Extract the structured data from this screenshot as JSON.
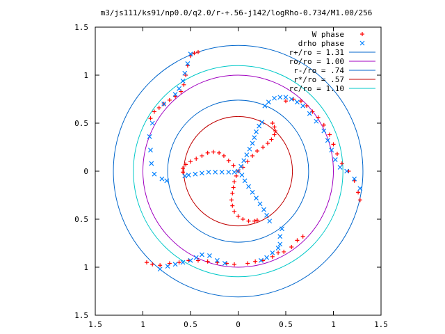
{
  "chart_data": {
    "type": "scatter",
    "title": "m3/js111/ks91/np0.0/q2.0/r-+.56-j142/logRho-0.734/M1.00/256",
    "xlabel": "",
    "ylabel": "",
    "xlim": [
      -1.5,
      1.5
    ],
    "ylim": [
      -1.5,
      1.5
    ],
    "grid": false,
    "legend_position": "top-right",
    "x_ticks": [
      {
        "v": -1.5,
        "label": "1.5"
      },
      {
        "v": -1.0,
        "label": "1"
      },
      {
        "v": -0.5,
        "label": "0.5"
      },
      {
        "v": 0,
        "label": "0"
      },
      {
        "v": 0.5,
        "label": "0.5"
      },
      {
        "v": 1.0,
        "label": "1"
      },
      {
        "v": 1.5,
        "label": "1.5"
      }
    ],
    "y_ticks": [
      {
        "v": 1.5,
        "label": "1.5"
      },
      {
        "v": 1.0,
        "label": "1"
      },
      {
        "v": 0.5,
        "label": "0.5"
      },
      {
        "v": 0,
        "label": "0"
      },
      {
        "v": -0.5,
        "label": "0.5"
      },
      {
        "v": -1.0,
        "label": "1"
      },
      {
        "v": -1.5,
        "label": "1.5"
      }
    ],
    "series": [
      {
        "name": "W phase",
        "marker": "plus",
        "color": "#ff0000",
        "points": [
          [
            0.0,
            0.0
          ],
          [
            -0.05,
            0.06
          ],
          [
            -0.1,
            0.11
          ],
          [
            -0.15,
            0.16
          ],
          [
            -0.2,
            0.19
          ],
          [
            -0.26,
            0.2
          ],
          [
            -0.32,
            0.19
          ],
          [
            -0.38,
            0.16
          ],
          [
            -0.44,
            0.13
          ],
          [
            -0.5,
            0.1
          ],
          [
            -0.55,
            0.07
          ],
          [
            -0.58,
            0.03
          ],
          [
            -0.58,
            -0.01
          ],
          [
            0.05,
            0.04
          ],
          [
            0.1,
            0.1
          ],
          [
            0.15,
            0.16
          ],
          [
            0.2,
            0.21
          ],
          [
            0.26,
            0.25
          ],
          [
            0.31,
            0.29
          ],
          [
            0.35,
            0.33
          ],
          [
            0.38,
            0.38
          ],
          [
            0.39,
            0.42
          ],
          [
            0.38,
            0.46
          ],
          [
            0.36,
            0.5
          ],
          [
            -0.02,
            -0.05
          ],
          [
            -0.04,
            -0.11
          ],
          [
            -0.05,
            -0.17
          ],
          [
            -0.06,
            -0.23
          ],
          [
            -0.07,
            -0.3
          ],
          [
            -0.06,
            -0.36
          ],
          [
            -0.04,
            -0.42
          ],
          [
            0.0,
            -0.47
          ],
          [
            0.05,
            -0.5
          ],
          [
            0.11,
            -0.52
          ],
          [
            0.17,
            -0.52
          ],
          [
            0.2,
            -0.51
          ],
          [
            -0.5,
            1.2
          ],
          [
            -0.46,
            1.23
          ],
          [
            -0.42,
            1.24
          ],
          [
            -0.53,
            1.1
          ],
          [
            -0.55,
            1.0
          ],
          [
            -0.57,
            0.9
          ],
          [
            -0.6,
            0.83
          ],
          [
            -0.66,
            0.78
          ],
          [
            -0.72,
            0.74
          ],
          [
            -0.78,
            0.7
          ],
          [
            -0.83,
            0.66
          ],
          [
            -0.88,
            0.62
          ],
          [
            -0.92,
            0.55
          ],
          [
            0.5,
            0.73
          ],
          [
            0.58,
            0.75
          ],
          [
            0.66,
            0.73
          ],
          [
            0.72,
            0.68
          ],
          [
            0.78,
            0.62
          ],
          [
            0.84,
            0.56
          ],
          [
            0.9,
            0.48
          ],
          [
            0.96,
            0.38
          ],
          [
            1.0,
            0.28
          ],
          [
            1.04,
            0.18
          ],
          [
            1.09,
            0.08
          ],
          [
            1.16,
            0.0
          ],
          [
            1.22,
            -0.1
          ],
          [
            1.26,
            -0.22
          ],
          [
            1.28,
            -0.3
          ],
          [
            -0.96,
            -0.95
          ],
          [
            -0.9,
            -0.97
          ],
          [
            -0.82,
            -0.98
          ],
          [
            -0.72,
            -0.96
          ],
          [
            -0.62,
            -0.95
          ],
          [
            -0.52,
            -0.93
          ],
          [
            -0.42,
            -0.93
          ],
          [
            -0.32,
            -0.94
          ],
          [
            -0.22,
            -0.95
          ],
          [
            -0.12,
            -0.96
          ],
          [
            -0.04,
            -0.97
          ],
          [
            0.1,
            -0.96
          ],
          [
            0.18,
            -0.94
          ],
          [
            0.26,
            -0.93
          ],
          [
            0.36,
            -0.89
          ],
          [
            0.42,
            -0.85
          ],
          [
            0.48,
            -0.84
          ],
          [
            0.56,
            -0.79
          ],
          [
            0.62,
            -0.72
          ],
          [
            0.68,
            -0.68
          ]
        ]
      },
      {
        "name": "drho phase",
        "marker": "cross",
        "color": "#0080ff",
        "points": [
          [
            0.0,
            0.0
          ],
          [
            0.03,
            0.05
          ],
          [
            0.06,
            0.11
          ],
          [
            0.09,
            0.17
          ],
          [
            0.12,
            0.23
          ],
          [
            0.15,
            0.29
          ],
          [
            0.17,
            0.35
          ],
          [
            0.19,
            0.41
          ],
          [
            0.22,
            0.47
          ],
          [
            0.25,
            0.51
          ],
          [
            -0.04,
            -0.01
          ],
          [
            -0.1,
            -0.01
          ],
          [
            -0.17,
            -0.01
          ],
          [
            -0.24,
            -0.01
          ],
          [
            -0.31,
            -0.01
          ],
          [
            -0.38,
            -0.02
          ],
          [
            -0.45,
            -0.03
          ],
          [
            -0.52,
            -0.04
          ],
          [
            -0.56,
            -0.05
          ],
          [
            0.04,
            -0.04
          ],
          [
            0.07,
            -0.1
          ],
          [
            0.11,
            -0.16
          ],
          [
            0.15,
            -0.22
          ],
          [
            0.19,
            -0.28
          ],
          [
            0.23,
            -0.34
          ],
          [
            0.27,
            -0.4
          ],
          [
            0.3,
            -0.46
          ],
          [
            0.33,
            -0.52
          ],
          [
            -0.5,
            1.22
          ],
          [
            -0.53,
            1.12
          ],
          [
            -0.56,
            1.02
          ],
          [
            -0.58,
            0.94
          ],
          [
            -0.62,
            0.86
          ],
          [
            -0.66,
            0.8
          ],
          [
            -0.78,
            0.7
          ],
          [
            -0.9,
            0.5
          ],
          [
            -0.93,
            0.36
          ],
          [
            -0.92,
            0.22
          ],
          [
            -0.91,
            0.08
          ],
          [
            -0.88,
            -0.03
          ],
          [
            -0.8,
            -0.08
          ],
          [
            -0.75,
            -0.1
          ],
          [
            0.28,
            0.68
          ],
          [
            0.32,
            0.72
          ],
          [
            0.38,
            0.76
          ],
          [
            0.44,
            0.77
          ],
          [
            0.5,
            0.77
          ],
          [
            0.56,
            0.75
          ],
          [
            0.62,
            0.72
          ],
          [
            0.68,
            0.68
          ],
          [
            0.75,
            0.6
          ],
          [
            0.82,
            0.52
          ],
          [
            0.9,
            0.42
          ],
          [
            0.94,
            0.32
          ],
          [
            0.98,
            0.22
          ],
          [
            1.02,
            0.12
          ],
          [
            1.07,
            0.04
          ],
          [
            1.14,
            0.0
          ],
          [
            1.22,
            -0.08
          ],
          [
            1.28,
            -0.18
          ],
          [
            0.46,
            -0.6
          ],
          [
            0.44,
            -0.68
          ],
          [
            0.44,
            -0.76
          ],
          [
            0.42,
            -0.8
          ],
          [
            0.36,
            -0.85
          ],
          [
            0.3,
            -0.9
          ],
          [
            0.24,
            -0.93
          ],
          [
            -0.82,
            -1.02
          ],
          [
            -0.74,
            -0.99
          ],
          [
            -0.66,
            -0.97
          ],
          [
            -0.58,
            -0.95
          ],
          [
            -0.5,
            -0.93
          ],
          [
            -0.44,
            -0.9
          ],
          [
            -0.38,
            -0.87
          ],
          [
            -0.3,
            -0.88
          ],
          [
            -0.22,
            -0.93
          ],
          [
            -0.14,
            -0.96
          ]
        ]
      }
    ],
    "circles": [
      {
        "name": "r+/ro = 1.31",
        "r": 1.31,
        "color": "#0066cc"
      },
      {
        "name": "ro/ro = 1.00",
        "r": 1.0,
        "color": "#a000c0"
      },
      {
        "name": "r-/ro = .74",
        "r": 0.74,
        "color": "#0066cc"
      },
      {
        "name": "r*/ro = .57",
        "r": 0.57,
        "color": "#c00000"
      },
      {
        "name": "rc/ro = 1.10",
        "r": 1.1,
        "color": "#00c8c8"
      }
    ]
  }
}
